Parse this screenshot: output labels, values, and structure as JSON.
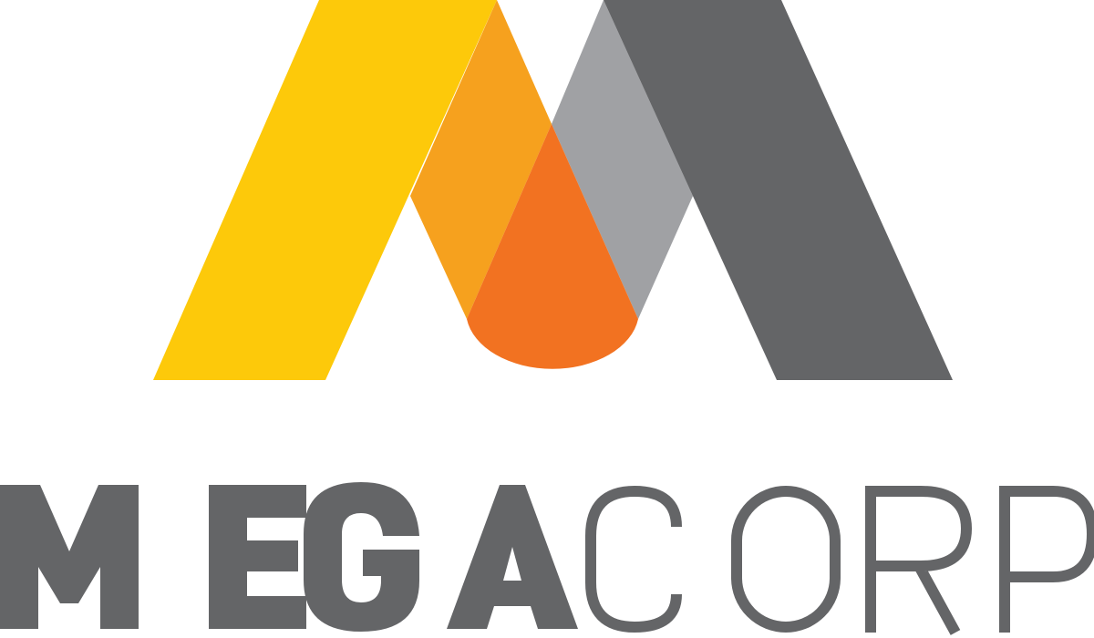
{
  "logo": {
    "wordmark_bold": "MEGA",
    "wordmark_light": "CORP",
    "icon_name": "megacorp-m-mark-icon"
  },
  "colors": {
    "background": "#ffffff",
    "yellow": "#fdc90a",
    "orange_light": "#f6a11e",
    "orange_dark": "#f27221",
    "gray_light": "#a0a1a4",
    "gray_dark": "#646567",
    "text_gray": "#646567"
  }
}
